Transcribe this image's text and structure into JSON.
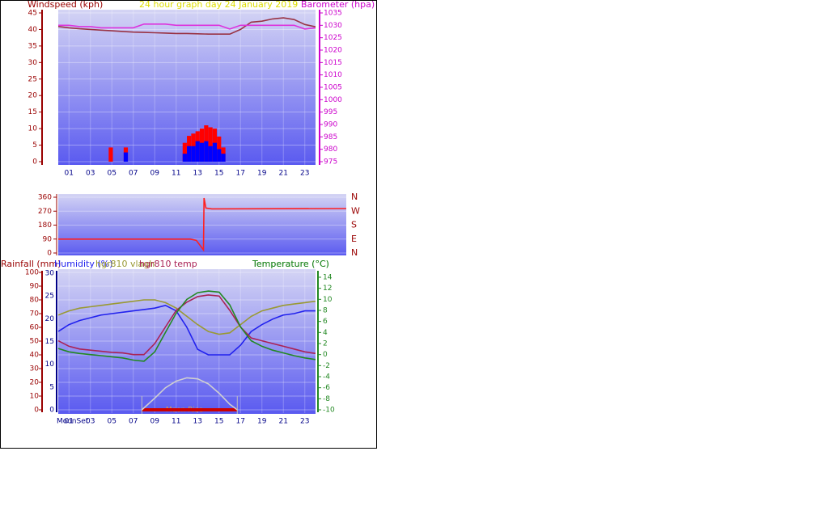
{
  "chart_data": [
    {
      "type": "combo",
      "title": "24 hour graph day   24 January 2019",
      "ylabel": "Windspeed (kph)",
      "y2label": "Barometer (hpa)",
      "xlim": [
        0,
        24
      ],
      "xticks": [
        {
          "value": 1,
          "label": "01"
        },
        {
          "value": 3,
          "label": "03"
        },
        {
          "value": 5,
          "label": "05"
        },
        {
          "value": 7,
          "label": "07"
        },
        {
          "value": 9,
          "label": "09"
        },
        11,
        13,
        15,
        17,
        19,
        21,
        23
      ],
      "ylim": [
        0,
        45
      ],
      "yticks": [
        0,
        5,
        10,
        15,
        20,
        25,
        30,
        35,
        40,
        45
      ],
      "y2lim": [
        975,
        1035
      ],
      "y2ticks": [
        975,
        980,
        985,
        990,
        995,
        1000,
        1005,
        1010,
        1015,
        1020,
        1025,
        1030,
        1035
      ],
      "grid": true,
      "x": [
        0,
        1,
        2,
        3,
        4,
        5,
        6,
        7,
        8,
        9,
        10,
        11,
        12,
        13,
        14,
        15,
        16,
        17,
        18,
        19,
        20,
        21,
        22,
        23,
        24
      ],
      "series": [
        {
          "type": "line",
          "color": "#993344",
          "values": [
            40.9,
            40.5,
            40.2,
            40,
            39.8,
            39.6,
            39.4,
            39.2,
            39.1,
            39,
            38.9,
            38.8,
            38.8,
            38.7,
            38.6,
            38.6,
            38.6,
            40,
            42.2,
            42.5,
            43.2,
            43.5,
            43,
            41.5,
            40.8
          ]
        },
        {
          "type": "line",
          "color": "#dd33dd",
          "axis": "y2",
          "values": [
            1030,
            1030,
            1029.5,
            1029.5,
            1029,
            1029,
            1029,
            1029,
            1030.5,
            1030.5,
            1030.5,
            1030,
            1030,
            1030,
            1030,
            1030,
            1028.5,
            1030,
            1030,
            1030,
            1030,
            1030,
            1030,
            1028.5,
            1029
          ]
        },
        {
          "type": "bar",
          "color": "#ff0000",
          "x": [
            4.9,
            6.3,
            11.8,
            12.2,
            12.6,
            13,
            13.4,
            13.8,
            14.2,
            14.6,
            15,
            15.4
          ],
          "values": [
            4.3,
            4.3,
            5.7,
            7.8,
            8.5,
            9.2,
            10,
            11,
            10.4,
            10,
            7.6,
            4.3
          ]
        },
        {
          "type": "bar",
          "color": "#0000ff",
          "x": [
            6.3,
            11.8,
            12.2,
            12.6,
            13,
            13.4,
            13.8,
            14.2,
            14.6,
            15,
            15.4
          ],
          "values": [
            2.8,
            2.4,
            4.7,
            4.7,
            6.2,
            5.7,
            6.2,
            4.7,
            5.7,
            3.8,
            2.4
          ]
        }
      ]
    },
    {
      "type": "line",
      "xlim": [
        0,
        24
      ],
      "ylim": [
        0,
        360
      ],
      "yticks": [
        0,
        90,
        180,
        270,
        360
      ],
      "y2lim": [
        0,
        360
      ],
      "y2ticks": [
        {
          "value": 0,
          "label": "N"
        },
        {
          "value": 90,
          "label": "E"
        },
        {
          "value": 180,
          "label": "S"
        },
        {
          "value": 270,
          "label": "W"
        },
        {
          "value": 360,
          "label": "N"
        }
      ],
      "grid": true,
      "series": [
        {
          "type": "line",
          "color": "#ff2020",
          "x": [
            0,
            11,
            11.5,
            12.1,
            12.15,
            12.3,
            12.8,
            24
          ],
          "values": [
            90,
            90,
            82,
            20,
            355,
            290,
            285,
            287
          ]
        }
      ]
    },
    {
      "type": "line",
      "ylabel": "Rainfall (mm)",
      "y2label": "Temperature (°C)",
      "xlim": [
        0,
        24
      ],
      "xticks": [
        {
          "value": 1,
          "label": "01"
        },
        {
          "value": 3,
          "label": "03"
        },
        {
          "value": 5,
          "label": "05"
        },
        {
          "value": 7,
          "label": "07"
        },
        {
          "value": 9,
          "label": "09"
        },
        11,
        13,
        15,
        17,
        19,
        21,
        23
      ],
      "ylim": [
        0,
        100
      ],
      "yticks": [
        0,
        10,
        20,
        30,
        40,
        50,
        60,
        70,
        80,
        90,
        100
      ],
      "y3lim": [
        0,
        30
      ],
      "y3ticks": [
        0,
        5,
        10,
        15,
        20,
        25,
        30
      ],
      "y2lim": [
        -10,
        14
      ],
      "y2ticks": [
        -10,
        -8,
        -6,
        -4,
        -2,
        0,
        2,
        4,
        6,
        8,
        10,
        12,
        14
      ],
      "grid": true,
      "annotations": [
        "Moon Rise",
        "MoonSet"
      ],
      "band": {
        "x": [
          7.8,
          16.7
        ],
        "color": "#cc0000"
      },
      "x": [
        0,
        1,
        2,
        3,
        4,
        5,
        6,
        7,
        8,
        9,
        10,
        11,
        12,
        13,
        14,
        15,
        16,
        17,
        18,
        19,
        20,
        21,
        22,
        23,
        24
      ],
      "series": [
        {
          "type": "line",
          "name": "Humidity (%)",
          "color": "#2222ee",
          "values": [
            57,
            62,
            65,
            67,
            69,
            70,
            71,
            72,
            73,
            74,
            76,
            72,
            60,
            44,
            40,
            40,
            40,
            47,
            57,
            62,
            66,
            69,
            70,
            72,
            72
          ]
        },
        {
          "type": "line",
          "name": "hgr810 vlagh",
          "color": "#999933",
          "values": [
            69,
            72,
            74,
            75,
            76,
            77,
            78,
            79,
            80,
            80,
            78,
            74,
            68,
            62,
            57,
            55,
            56,
            62,
            68,
            72,
            74,
            76,
            77,
            78,
            79
          ]
        },
        {
          "type": "line",
          "name": "hgr810 temp",
          "color": "#aa2255",
          "axis": "y2",
          "values": [
            2.5,
            1.5,
            1,
            0.8,
            0.6,
            0.4,
            0.3,
            0,
            0,
            2,
            5,
            8,
            9.5,
            10.5,
            10.8,
            10.6,
            8,
            5,
            3,
            2.5,
            2,
            1.5,
            1,
            0.5,
            0.2
          ]
        },
        {
          "type": "line",
          "name": "Temperature (°C)",
          "color": "#228822",
          "axis": "y2",
          "values": [
            1.1,
            0.5,
            0.2,
            0,
            -0.2,
            -0.4,
            -0.6,
            -1,
            -1.2,
            0.5,
            4,
            7.5,
            10,
            11.2,
            11.5,
            11.3,
            9,
            5,
            2.5,
            1.5,
            0.8,
            0.3,
            -0.2,
            -0.6,
            -0.9
          ]
        },
        {
          "type": "line",
          "color": "#d0d0d0",
          "axis": "y2",
          "x": [
            7.8,
            9,
            10,
            11,
            12,
            13,
            14,
            15,
            16,
            16.7
          ],
          "values": [
            -10,
            -7.9,
            -6,
            -4.8,
            -4.2,
            -4.4,
            -5.3,
            -7,
            -9,
            -10
          ]
        }
      ]
    }
  ]
}
